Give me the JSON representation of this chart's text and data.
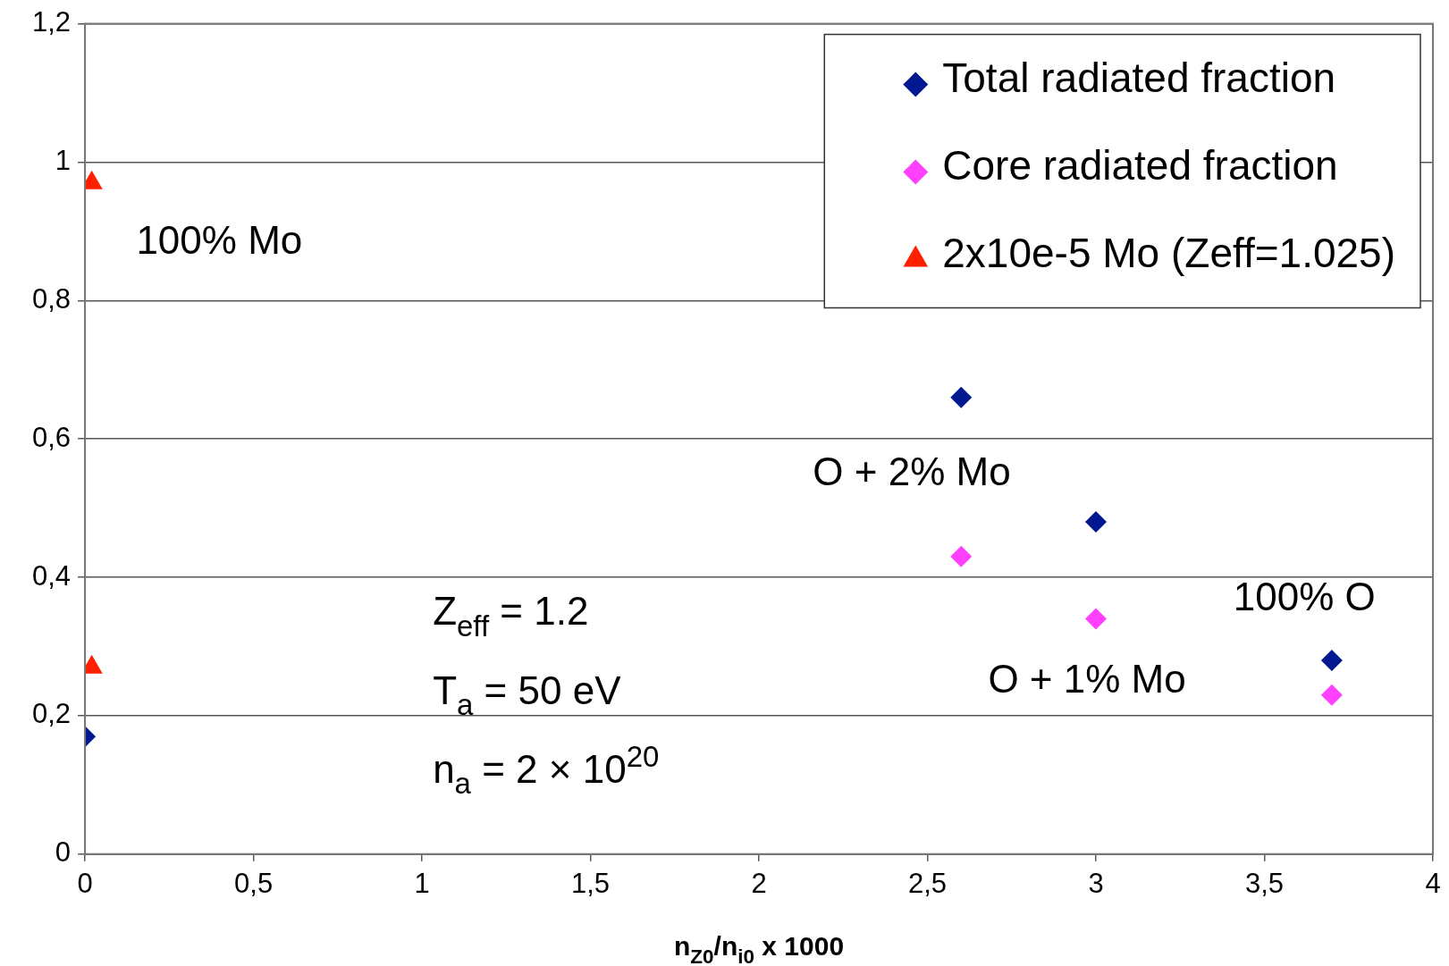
{
  "chart_data": {
    "type": "scatter",
    "xlabel": "n$_{Z0}$/n$_{i0}$ x 1000",
    "series": [
      {
        "name": "Total radiated fraction",
        "color": "#001890",
        "marker": "diamond",
        "x": [
          0,
          2.6,
          3,
          3.7
        ],
        "values": [
          0.17,
          0.66,
          0.48,
          0.28
        ]
      },
      {
        "name": "Core radiated fraction",
        "color": "#ff40ff",
        "marker": "diamond",
        "x": [
          2.6,
          3,
          3.7
        ],
        "values": [
          0.43,
          0.34,
          0.23
        ]
      },
      {
        "name": "2x10e-5 Mo (Zeff=1.025)",
        "color": "#ff2000",
        "marker": "triangle",
        "x": [
          0.02,
          0.02
        ],
        "values": [
          0.97,
          0.27
        ]
      }
    ],
    "xlim": [
      0,
      4
    ],
    "xticks": [
      0,
      {
        "value": 0.5,
        "label": "0,5"
      },
      1,
      {
        "value": 1.5,
        "label": "1,5"
      },
      2,
      {
        "value": 2.5,
        "label": "2,5"
      },
      3,
      {
        "value": 3.5,
        "label": "3,5"
      },
      4
    ],
    "ylim": [
      0,
      1.2
    ],
    "yticks": [
      0,
      {
        "value": 0.2,
        "label": "0,2"
      },
      {
        "value": 0.4,
        "label": "0,4"
      },
      {
        "value": 0.6,
        "label": "0,6"
      },
      {
        "value": 0.8,
        "label": "0,8"
      },
      1,
      {
        "value": 1.2,
        "label": "1,2"
      }
    ],
    "grid": "y",
    "legend": "top right",
    "annotations": [
      "100% Mo",
      "O + 2% Mo",
      "O + 1% Mo",
      "100% O",
      "Z$_{eff}$ = 1.2",
      "T$_{a}$ = 50 eV",
      "n$_{a}$ = 2 × 10$^{20}$"
    ]
  }
}
